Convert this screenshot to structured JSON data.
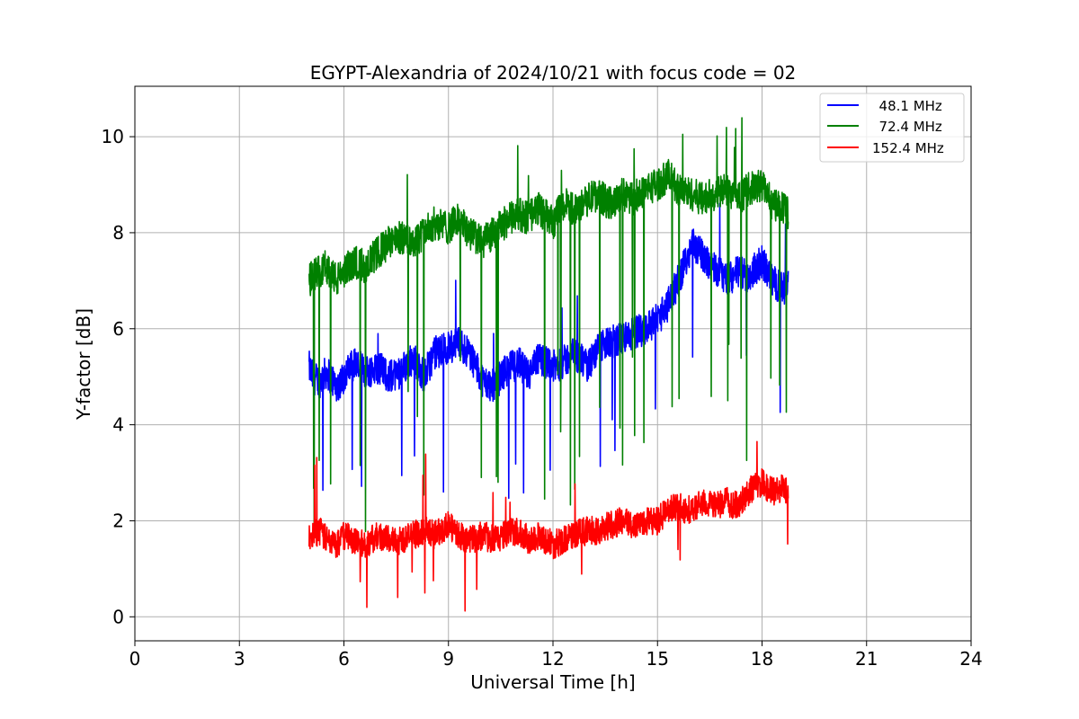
{
  "chart_data": {
    "type": "line",
    "title": "EGYPT-Alexandria of 2024/10/21 with focus code = 02",
    "xlabel": "Universal Time [h]",
    "ylabel": "Y-factor [dB]",
    "xlim": [
      0,
      24
    ],
    "ylim": [
      -0.5,
      11.05
    ],
    "xticks": [
      0,
      3,
      6,
      9,
      12,
      15,
      18,
      21,
      24
    ],
    "yticks": [
      0,
      2,
      4,
      6,
      8,
      10
    ],
    "grid": true,
    "legend_position": "top-right",
    "series": [
      {
        "name": "  48.1 MHz",
        "color": "#0000ff",
        "x": [
          5.0,
          5.1,
          5.3,
          5.5,
          5.8,
          6.0,
          6.3,
          6.6,
          7.0,
          7.3,
          7.6,
          8.0,
          8.3,
          8.6,
          9.0,
          9.3,
          9.6,
          10.0,
          10.3,
          10.6,
          11.0,
          11.3,
          11.6,
          12.0,
          12.3,
          12.6,
          13.0,
          13.3,
          13.6,
          14.0,
          14.3,
          14.6,
          15.0,
          15.3,
          15.6,
          16.0,
          16.3,
          16.6,
          17.0,
          17.3,
          17.6,
          18.0,
          18.3,
          18.6,
          18.75
        ],
        "y": [
          5.2,
          5.0,
          4.9,
          5.1,
          4.8,
          5.0,
          5.3,
          5.1,
          5.2,
          5.0,
          5.1,
          5.4,
          5.0,
          5.5,
          5.6,
          5.7,
          5.5,
          4.9,
          4.8,
          5.1,
          5.3,
          5.0,
          5.4,
          5.2,
          5.3,
          5.5,
          5.2,
          5.6,
          5.7,
          5.8,
          5.9,
          6.0,
          6.2,
          6.5,
          7.0,
          7.8,
          7.5,
          7.3,
          7.0,
          7.2,
          7.1,
          7.4,
          7.0,
          6.8,
          6.9
        ]
      },
      {
        "name": "  72.4 MHz",
        "color": "#008000",
        "x": [
          5.0,
          5.1,
          5.3,
          5.5,
          5.8,
          6.0,
          6.3,
          6.6,
          7.0,
          7.3,
          7.6,
          8.0,
          8.3,
          8.6,
          9.0,
          9.3,
          9.6,
          10.0,
          10.3,
          10.6,
          11.0,
          11.3,
          11.6,
          12.0,
          12.3,
          12.6,
          13.0,
          13.3,
          13.6,
          14.0,
          14.3,
          14.6,
          15.0,
          15.3,
          15.6,
          16.0,
          16.3,
          16.6,
          17.0,
          17.3,
          17.6,
          18.0,
          18.3,
          18.6,
          18.75
        ],
        "y": [
          7.0,
          7.1,
          7.2,
          7.3,
          7.0,
          7.2,
          7.4,
          7.3,
          7.6,
          7.8,
          7.9,
          7.8,
          8.0,
          8.2,
          8.1,
          8.3,
          8.0,
          7.8,
          8.0,
          8.2,
          8.4,
          8.3,
          8.5,
          8.2,
          8.6,
          8.5,
          8.7,
          8.8,
          8.6,
          8.8,
          8.7,
          8.9,
          9.0,
          9.2,
          8.9,
          8.8,
          8.7,
          8.8,
          8.9,
          8.7,
          8.9,
          9.0,
          8.6,
          8.5,
          8.4
        ]
      },
      {
        "name": "152.4 MHz",
        "color": "#ff0000",
        "x": [
          5.0,
          5.1,
          5.3,
          5.5,
          5.8,
          6.0,
          6.3,
          6.6,
          7.0,
          7.3,
          7.6,
          8.0,
          8.3,
          8.6,
          9.0,
          9.3,
          9.6,
          10.0,
          10.3,
          10.6,
          11.0,
          11.3,
          11.6,
          12.0,
          12.3,
          12.6,
          13.0,
          13.3,
          13.6,
          14.0,
          14.3,
          14.6,
          15.0,
          15.3,
          15.6,
          16.0,
          16.3,
          16.6,
          17.0,
          17.3,
          17.6,
          18.0,
          18.3,
          18.6,
          18.75
        ],
        "y": [
          1.6,
          1.7,
          1.8,
          1.6,
          1.5,
          1.7,
          1.6,
          1.5,
          1.7,
          1.6,
          1.6,
          1.7,
          1.8,
          1.7,
          1.9,
          1.7,
          1.6,
          1.7,
          1.6,
          1.7,
          1.8,
          1.6,
          1.7,
          1.5,
          1.6,
          1.7,
          1.8,
          1.8,
          1.9,
          2.0,
          1.9,
          2.0,
          2.0,
          2.2,
          2.3,
          2.2,
          2.4,
          2.3,
          2.4,
          2.3,
          2.6,
          2.8,
          2.6,
          2.7,
          2.6
        ]
      }
    ]
  }
}
